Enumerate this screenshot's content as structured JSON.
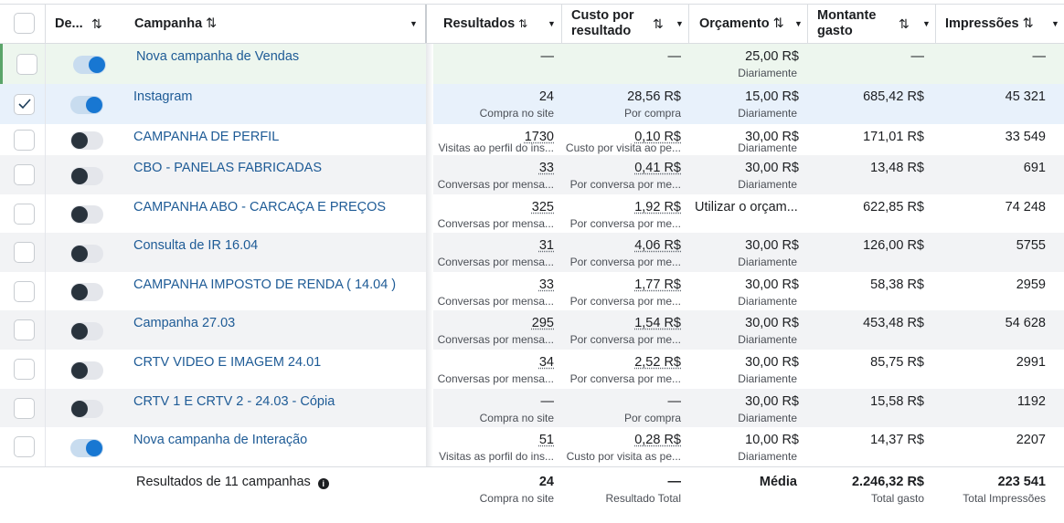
{
  "header": {
    "col_delivery": "De...",
    "col_campaign": "Campanha",
    "col_results": "Resultados",
    "col_cost_line1": "Custo por",
    "col_cost_line2": "resultado",
    "col_budget": "Orçamento",
    "col_spent_line1": "Montante",
    "col_spent_line2": "gasto",
    "col_impressions": "Impressões"
  },
  "rows": [
    {
      "name": "Nova campanha de Vendas",
      "checked": false,
      "on": true,
      "results": "—",
      "results_sub": "",
      "cost": "—",
      "cost_sub": "",
      "budget": "25,00 R$",
      "budget_sub": "Diariamente",
      "spent": "—",
      "impressions": "—",
      "bg": "#edf6ee"
    },
    {
      "name": "Instagram",
      "checked": true,
      "on": true,
      "results": "24",
      "results_sub": "Compra no site",
      "cost": "28,56 R$",
      "cost_sub": "Por compra",
      "budget": "15,00 R$",
      "budget_sub": "Diariamente",
      "spent": "685,42 R$",
      "impressions": "45 321",
      "bg": "#e8f1fb"
    },
    {
      "name": "CAMPANHA DE PERFIL",
      "checked": false,
      "on": false,
      "results": "1730",
      "results_sub": "Visitas ao perfil do ins...",
      "cost": "0,10 R$",
      "cost_sub": "Custo por visita ao pe...",
      "budget": "30,00 R$",
      "budget_sub": "Diariamente",
      "spent": "171,01 R$",
      "impressions": "33 549",
      "bg": "#ffffff"
    },
    {
      "name": "CBO - PANELAS FABRICADAS",
      "checked": false,
      "on": false,
      "results": "33",
      "results_sub": "Conversas por mensa...",
      "cost": "0,41 R$",
      "cost_sub": "Por conversa por me...",
      "budget": "30,00 R$",
      "budget_sub": "Diariamente",
      "spent": "13,48 R$",
      "impressions": "691",
      "bg": "#f2f3f5"
    },
    {
      "name": "CAMPANHA ABO - CARCAÇA E PREÇOS",
      "checked": false,
      "on": false,
      "results": "325",
      "results_sub": "Conversas por mensa...",
      "cost": "1,92 R$",
      "cost_sub": "Por conversa por me...",
      "budget": "Utilizar o orçam...",
      "budget_sub": "",
      "spent": "622,85 R$",
      "impressions": "74 248",
      "bg": "#ffffff"
    },
    {
      "name": "Consulta de IR 16.04",
      "checked": false,
      "on": false,
      "results": "31",
      "results_sub": "Conversas por mensa...",
      "cost": "4,06 R$",
      "cost_sub": "Por conversa por me...",
      "budget": "30,00 R$",
      "budget_sub": "Diariamente",
      "spent": "126,00 R$",
      "impressions": "5755",
      "bg": "#f2f3f5"
    },
    {
      "name": "CAMPANHA IMPOSTO DE RENDA ( 14.04 )",
      "checked": false,
      "on": false,
      "results": "33",
      "results_sub": "Conversas por mensa...",
      "cost": "1,77 R$",
      "cost_sub": "Por conversa por me...",
      "budget": "30,00 R$",
      "budget_sub": "Diariamente",
      "spent": "58,38 R$",
      "impressions": "2959",
      "bg": "#ffffff"
    },
    {
      "name": "Campanha 27.03",
      "checked": false,
      "on": false,
      "results": "295",
      "results_sub": "Conversas por mensa...",
      "cost": "1,54 R$",
      "cost_sub": "Por conversa por me...",
      "budget": "30,00 R$",
      "budget_sub": "Diariamente",
      "spent": "453,48 R$",
      "impressions": "54 628",
      "bg": "#f2f3f5"
    },
    {
      "name": "CRTV VIDEO E IMAGEM 24.01",
      "checked": false,
      "on": false,
      "results": "34",
      "results_sub": "Conversas por mensa...",
      "cost": "2,52 R$",
      "cost_sub": "Por conversa por me...",
      "budget": "30,00 R$",
      "budget_sub": "Diariamente",
      "spent": "85,75 R$",
      "impressions": "2991",
      "bg": "#ffffff"
    },
    {
      "name": "CRTV 1 E CRTV 2 - 24.03 - Cópia",
      "checked": false,
      "on": false,
      "results": "—",
      "results_sub": "Compra no site",
      "cost": "—",
      "cost_sub": "Por compra",
      "budget": "30,00 R$",
      "budget_sub": "Diariamente",
      "spent": "15,58 R$",
      "impressions": "1192",
      "bg": "#f2f3f5"
    },
    {
      "name": "Nova campanha de Interação",
      "checked": false,
      "on": true,
      "results": "51",
      "results_sub": "Visitas as porfil do ins...",
      "cost": "0,28 R$",
      "cost_sub": "Custo por visita as pe...",
      "budget": "10,00 R$",
      "budget_sub": "Diariamente",
      "spent": "14,37 R$",
      "impressions": "2207",
      "bg": "#ffffff"
    }
  ],
  "footer": {
    "label": "Resultados de 11 campanhas",
    "results": "24",
    "results_sub": "Compra no site",
    "cost": "—",
    "cost_sub": "Resultado Total",
    "budget": "Média",
    "spent": "2.246,32 R$",
    "spent_sub": "Total gasto",
    "impressions": "223 541",
    "impressions_sub": "Total Impressões"
  }
}
